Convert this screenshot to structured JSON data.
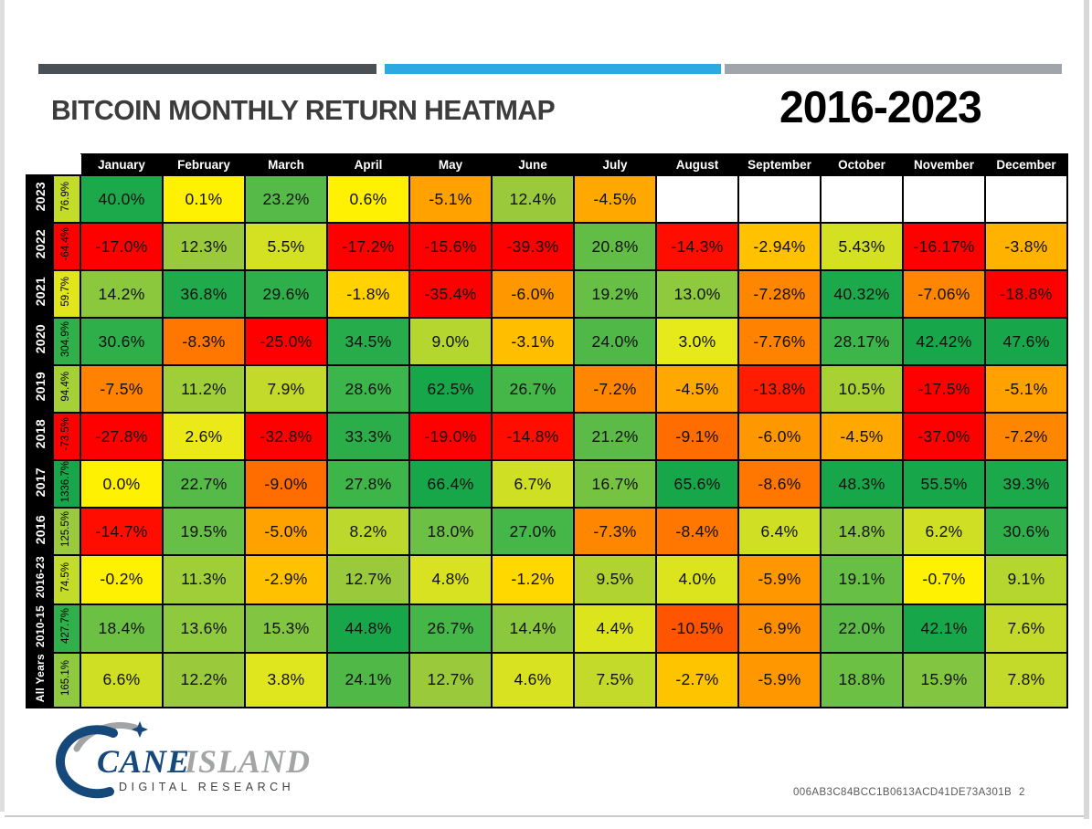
{
  "header": {
    "title": "BITCOIN MONTHLY RETURN HEATMAP",
    "period": "2016-2023",
    "accent_bar_colors": [
      "#4a5156",
      "#2ba9e0",
      "#9fa5aa"
    ]
  },
  "footer": {
    "code": "006AB3C84BCC1B0613ACD41DE73A301B",
    "page_number": "2"
  },
  "logo": {
    "name_primary": "CANE",
    "name_secondary": "ISLAND",
    "tagline": "DIGITAL RESEARCH",
    "navy": "#16497b",
    "gray": "#a2a4a6"
  },
  "chart_data": {
    "type": "heatmap",
    "title": "BITCOIN MONTHLY RETURN HEATMAP",
    "subtitle": "2016-2023",
    "legend_position": "none",
    "grid": "on",
    "header_bg": "#000000",
    "header_text_color": "#ffffff",
    "empty_color": "#ffffff",
    "columns": [
      "January",
      "February",
      "March",
      "April",
      "May",
      "June",
      "July",
      "August",
      "September",
      "October",
      "November",
      "December"
    ],
    "rows": [
      {
        "label": "2023",
        "annual": "76.9%",
        "annual_color": "#c3db29",
        "cells": [
          {
            "v": "40.0%",
            "c": "#1ca94b"
          },
          {
            "v": "0.1%",
            "c": "#fff101"
          },
          {
            "v": "23.2%",
            "c": "#55ba47"
          },
          {
            "v": "0.6%",
            "c": "#fff101"
          },
          {
            "v": "-5.1%",
            "c": "#ffa200"
          },
          {
            "v": "12.4%",
            "c": "#9aca3c"
          },
          {
            "v": "-4.5%",
            "c": "#ffa800"
          },
          {
            "v": "",
            "c": "#ffffff"
          },
          {
            "v": "",
            "c": "#ffffff"
          },
          {
            "v": "",
            "c": "#ffffff"
          },
          {
            "v": "",
            "c": "#ffffff"
          },
          {
            "v": "",
            "c": "#ffffff"
          }
        ]
      },
      {
        "label": "2022",
        "annual": "-64.4%",
        "annual_color": "#fe0000",
        "cells": [
          {
            "v": "-17.0%",
            "c": "#fe0000"
          },
          {
            "v": "12.3%",
            "c": "#9aca3c"
          },
          {
            "v": "5.5%",
            "c": "#d4e022"
          },
          {
            "v": "-17.2%",
            "c": "#fe0000"
          },
          {
            "v": "-15.6%",
            "c": "#fe0000"
          },
          {
            "v": "-39.3%",
            "c": "#fe0000"
          },
          {
            "v": "20.8%",
            "c": "#62bd46"
          },
          {
            "v": "-14.3%",
            "c": "#ff0d00"
          },
          {
            "v": "-2.94%",
            "c": "#ffc100"
          },
          {
            "v": "5.43%",
            "c": "#d4e022"
          },
          {
            "v": "-16.17%",
            "c": "#fe0000"
          },
          {
            "v": "-3.8%",
            "c": "#ffb200"
          }
        ]
      },
      {
        "label": "2021",
        "annual": "59.7%",
        "annual_color": "#e0e51c",
        "cells": [
          {
            "v": "14.2%",
            "c": "#8bc83e"
          },
          {
            "v": "36.8%",
            "c": "#21aa4b"
          },
          {
            "v": "29.6%",
            "c": "#2faf4a"
          },
          {
            "v": "-1.8%",
            "c": "#ffd200"
          },
          {
            "v": "-35.4%",
            "c": "#fe0000"
          },
          {
            "v": "-6.0%",
            "c": "#ff9700"
          },
          {
            "v": "19.2%",
            "c": "#68bf45"
          },
          {
            "v": "13.0%",
            "c": "#8fc93d"
          },
          {
            "v": "-7.28%",
            "c": "#ff8600"
          },
          {
            "v": "40.32%",
            "c": "#1ca94b"
          },
          {
            "v": "-7.06%",
            "c": "#ff8600"
          },
          {
            "v": "-18.8%",
            "c": "#fe0000"
          }
        ]
      },
      {
        "label": "2020",
        "annual": "304.9%",
        "annual_color": "#2fb04a",
        "cells": [
          {
            "v": "30.6%",
            "c": "#2faf4a"
          },
          {
            "v": "-8.3%",
            "c": "#ff7600"
          },
          {
            "v": "-25.0%",
            "c": "#fe0000"
          },
          {
            "v": "34.5%",
            "c": "#26ac4b"
          },
          {
            "v": "9.0%",
            "c": "#b5d52f"
          },
          {
            "v": "-3.1%",
            "c": "#ffbe00"
          },
          {
            "v": "24.0%",
            "c": "#50b847"
          },
          {
            "v": "3.0%",
            "c": "#e6ea1b"
          },
          {
            "v": "-7.76%",
            "c": "#ff8200"
          },
          {
            "v": "28.17%",
            "c": "#3cb54a"
          },
          {
            "v": "42.42%",
            "c": "#17a74a"
          },
          {
            "v": "47.6%",
            "c": "#17a74a"
          }
        ]
      },
      {
        "label": "2019",
        "annual": "94.4%",
        "annual_color": "#a5d036",
        "cells": [
          {
            "v": "-7.5%",
            "c": "#ff8200"
          },
          {
            "v": "11.2%",
            "c": "#a0ce38"
          },
          {
            "v": "7.9%",
            "c": "#c4da2a"
          },
          {
            "v": "28.6%",
            "c": "#3cb54a"
          },
          {
            "v": "62.5%",
            "c": "#17a74a"
          },
          {
            "v": "26.7%",
            "c": "#45b648"
          },
          {
            "v": "-7.2%",
            "c": "#ff8600"
          },
          {
            "v": "-4.5%",
            "c": "#ffa800"
          },
          {
            "v": "-13.8%",
            "c": "#ff1c00"
          },
          {
            "v": "10.5%",
            "c": "#a8d134"
          },
          {
            "v": "-17.5%",
            "c": "#fe0000"
          },
          {
            "v": "-5.1%",
            "c": "#ffa200"
          }
        ]
      },
      {
        "label": "2018",
        "annual": "-73.5%",
        "annual_color": "#fe0000",
        "cells": [
          {
            "v": "-27.8%",
            "c": "#fe0000"
          },
          {
            "v": "2.6%",
            "c": "#ece918"
          },
          {
            "v": "-32.8%",
            "c": "#fe0000"
          },
          {
            "v": "33.3%",
            "c": "#2bae4a"
          },
          {
            "v": "-19.0%",
            "c": "#fe0000"
          },
          {
            "v": "-14.8%",
            "c": "#ff0d00"
          },
          {
            "v": "21.2%",
            "c": "#5bbb46"
          },
          {
            "v": "-9.1%",
            "c": "#ff6c00"
          },
          {
            "v": "-6.0%",
            "c": "#ff9700"
          },
          {
            "v": "-4.5%",
            "c": "#ffa800"
          },
          {
            "v": "-37.0%",
            "c": "#fe0000"
          },
          {
            "v": "-7.2%",
            "c": "#ff8600"
          }
        ]
      },
      {
        "label": "2017",
        "annual": "1336.7%",
        "annual_color": "#17a74a",
        "cells": [
          {
            "v": "0.0%",
            "c": "#fff101"
          },
          {
            "v": "22.7%",
            "c": "#55ba47"
          },
          {
            "v": "-9.0%",
            "c": "#ff6c00"
          },
          {
            "v": "27.8%",
            "c": "#3eb549"
          },
          {
            "v": "66.4%",
            "c": "#17a74a"
          },
          {
            "v": "6.7%",
            "c": "#cfdf23"
          },
          {
            "v": "16.7%",
            "c": "#76c342"
          },
          {
            "v": "65.6%",
            "c": "#17a74a"
          },
          {
            "v": "-8.6%",
            "c": "#ff7600"
          },
          {
            "v": "48.3%",
            "c": "#17a74a"
          },
          {
            "v": "55.5%",
            "c": "#17a74a"
          },
          {
            "v": "39.3%",
            "c": "#1ca94b"
          }
        ]
      },
      {
        "label": "2016",
        "annual": "125.5%",
        "annual_color": "#9aca3c",
        "cells": [
          {
            "v": "-14.7%",
            "c": "#ff0d00"
          },
          {
            "v": "19.5%",
            "c": "#68bf45"
          },
          {
            "v": "-5.0%",
            "c": "#ffa200"
          },
          {
            "v": "8.2%",
            "c": "#bcd82c"
          },
          {
            "v": "18.0%",
            "c": "#6cc044"
          },
          {
            "v": "27.0%",
            "c": "#45b648"
          },
          {
            "v": "-7.3%",
            "c": "#ff8600"
          },
          {
            "v": "-8.4%",
            "c": "#ff7600"
          },
          {
            "v": "6.4%",
            "c": "#cfdf23"
          },
          {
            "v": "14.8%",
            "c": "#8bc83e"
          },
          {
            "v": "6.2%",
            "c": "#cfdf23"
          },
          {
            "v": "30.6%",
            "c": "#2faf4a"
          }
        ]
      },
      {
        "label": "2016-23",
        "annual": "74.5%",
        "annual_color": "#c3db29",
        "cells": [
          {
            "v": "-0.2%",
            "c": "#fff101"
          },
          {
            "v": "11.3%",
            "c": "#a0ce38"
          },
          {
            "v": "-2.9%",
            "c": "#ffc100"
          },
          {
            "v": "12.7%",
            "c": "#9aca3c"
          },
          {
            "v": "4.8%",
            "c": "#d8e220"
          },
          {
            "v": "-1.2%",
            "c": "#ffd800"
          },
          {
            "v": "9.5%",
            "c": "#b0d331"
          },
          {
            "v": "4.0%",
            "c": "#dce41e"
          },
          {
            "v": "-5.9%",
            "c": "#ff9700"
          },
          {
            "v": "19.1%",
            "c": "#68bf45"
          },
          {
            "v": "-0.7%",
            "c": "#fff101"
          },
          {
            "v": "9.1%",
            "c": "#b5d52f"
          }
        ]
      },
      {
        "label": "2010-15",
        "annual": "427.7%",
        "annual_color": "#2fb04a",
        "cells": [
          {
            "v": "18.4%",
            "c": "#6cc044"
          },
          {
            "v": "13.6%",
            "c": "#8fc93d"
          },
          {
            "v": "15.3%",
            "c": "#82c540"
          },
          {
            "v": "44.8%",
            "c": "#17a74a"
          },
          {
            "v": "26.7%",
            "c": "#45b648"
          },
          {
            "v": "14.4%",
            "c": "#8bc83e"
          },
          {
            "v": "4.4%",
            "c": "#dce41e"
          },
          {
            "v": "-10.5%",
            "c": "#ff5400"
          },
          {
            "v": "-6.9%",
            "c": "#ff8d00"
          },
          {
            "v": "22.0%",
            "c": "#5bbb46"
          },
          {
            "v": "42.1%",
            "c": "#17a74a"
          },
          {
            "v": "7.6%",
            "c": "#c4da2a"
          }
        ]
      },
      {
        "label": "All Years",
        "annual": "165.1%",
        "annual_color": "#8fc93d",
        "cells": [
          {
            "v": "6.6%",
            "c": "#cfdf23"
          },
          {
            "v": "12.2%",
            "c": "#9aca3c"
          },
          {
            "v": "3.8%",
            "c": "#e0e61e"
          },
          {
            "v": "24.1%",
            "c": "#50b847"
          },
          {
            "v": "12.7%",
            "c": "#9aca3c"
          },
          {
            "v": "4.6%",
            "c": "#d8e220"
          },
          {
            "v": "7.5%",
            "c": "#c4da2a"
          },
          {
            "v": "-2.7%",
            "c": "#ffc400"
          },
          {
            "v": "-5.9%",
            "c": "#ff9700"
          },
          {
            "v": "18.8%",
            "c": "#6cc044"
          },
          {
            "v": "15.9%",
            "c": "#82c540"
          },
          {
            "v": "7.8%",
            "c": "#c4da2a"
          }
        ]
      }
    ]
  }
}
